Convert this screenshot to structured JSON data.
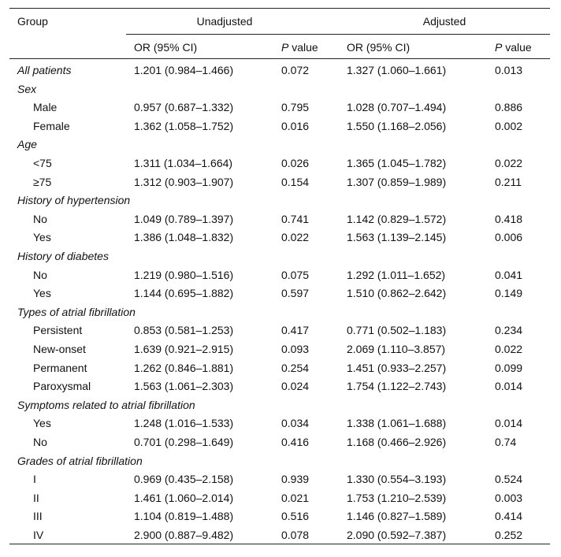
{
  "header": {
    "group": "Group",
    "unadjusted": "Unadjusted",
    "adjusted": "Adjusted",
    "subheaders": [
      "OR (95% CI)",
      {
        "em": "P",
        "text": "value"
      },
      "OR (95% CI)",
      {
        "em": "P",
        "text": "value"
      }
    ]
  },
  "rows": [
    {
      "label": "All patients",
      "style": "section",
      "cells": [
        "1.201 (0.984–1.466)",
        "0.072",
        "1.327 (1.060–1.661)",
        "0.013"
      ]
    },
    {
      "label": "Sex",
      "style": "section"
    },
    {
      "label": "Male",
      "style": "item",
      "cells": [
        "0.957 (0.687–1.332)",
        "0.795",
        "1.028 (0.707–1.494)",
        "0.886"
      ]
    },
    {
      "label": "Female",
      "style": "item",
      "cells": [
        "1.362 (1.058–1.752)",
        "0.016",
        "1.550 (1.168–2.056)",
        "0.002"
      ]
    },
    {
      "label": "Age",
      "style": "section"
    },
    {
      "label": "<75",
      "style": "item",
      "cells": [
        "1.311 (1.034–1.664)",
        "0.026",
        "1.365 (1.045–1.782)",
        "0.022"
      ]
    },
    {
      "label": "≥75",
      "style": "item",
      "cells": [
        "1.312 (0.903–1.907)",
        "0.154",
        "1.307 (0.859–1.989)",
        "0.211"
      ]
    },
    {
      "label": "History of hypertension",
      "style": "section"
    },
    {
      "label": "No",
      "style": "item",
      "cells": [
        "1.049 (0.789–1.397)",
        "0.741",
        "1.142 (0.829–1.572)",
        "0.418"
      ]
    },
    {
      "label": "Yes",
      "style": "item",
      "cells": [
        "1.386 (1.048–1.832)",
        "0.022",
        "1.563 (1.139–2.145)",
        "0.006"
      ]
    },
    {
      "label": "History of diabetes",
      "style": "section"
    },
    {
      "label": "No",
      "style": "item",
      "cells": [
        "1.219 (0.980–1.516)",
        "0.075",
        "1.292 (1.011–1.652)",
        "0.041"
      ]
    },
    {
      "label": "Yes",
      "style": "item",
      "cells": [
        "1.144 (0.695–1.882)",
        "0.597",
        "1.510 (0.862–2.642)",
        "0.149"
      ]
    },
    {
      "label": "Types of atrial fibrillation",
      "style": "section"
    },
    {
      "label": "Persistent",
      "style": "item",
      "cells": [
        "0.853 (0.581–1.253)",
        "0.417",
        "0.771 (0.502–1.183)",
        "0.234"
      ]
    },
    {
      "label": "New-onset",
      "style": "item",
      "cells": [
        "1.639 (0.921–2.915)",
        "0.093",
        "2.069 (1.110–3.857)",
        "0.022"
      ]
    },
    {
      "label": "Permanent",
      "style": "item",
      "cells": [
        "1.262 (0.846–1.881)",
        "0.254",
        "1.451 (0.933–2.257)",
        "0.099"
      ]
    },
    {
      "label": "Paroxysmal",
      "style": "item",
      "cells": [
        "1.563 (1.061–2.303)",
        "0.024",
        "1.754 (1.122–2.743)",
        "0.014"
      ]
    },
    {
      "label": "Symptoms related to atrial fibrillation",
      "style": "section"
    },
    {
      "label": "Yes",
      "style": "item",
      "cells": [
        "1.248 (1.016–1.533)",
        "0.034",
        "1.338 (1.061–1.688)",
        "0.014"
      ]
    },
    {
      "label": "No",
      "style": "item",
      "cells": [
        "0.701 (0.298–1.649)",
        "0.416",
        "1.168 (0.466–2.926)",
        "0.74"
      ]
    },
    {
      "label": "Grades of atrial fibrillation",
      "style": "section"
    },
    {
      "label": "I",
      "style": "item",
      "cells": [
        "0.969 (0.435–2.158)",
        "0.939",
        "1.330 (0.554–3.193)",
        "0.524"
      ]
    },
    {
      "label": "II",
      "style": "item",
      "cells": [
        "1.461 (1.060–2.014)",
        "0.021",
        "1.753 (1.210–2.539)",
        "0.003"
      ]
    },
    {
      "label": "III",
      "style": "item",
      "cells": [
        "1.104 (0.819–1.488)",
        "0.516",
        "1.146 (0.827–1.589)",
        "0.414"
      ]
    },
    {
      "label": "IV",
      "style": "item",
      "cells": [
        "2.900 (0.887–9.482)",
        "0.078",
        "2.090 (0.592–7.387)",
        "0.252"
      ]
    }
  ]
}
